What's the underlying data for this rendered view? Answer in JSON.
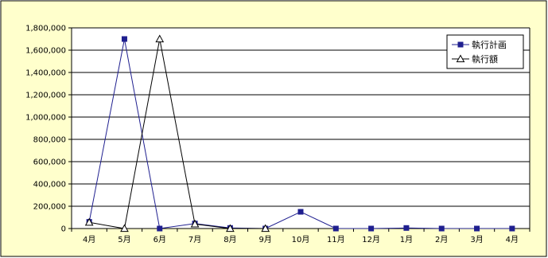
{
  "chart_data": {
    "type": "line",
    "categories": [
      "4月",
      "5月",
      "6月",
      "7月",
      "8月",
      "9月",
      "10月",
      "11月",
      "12月",
      "1月",
      "2月",
      "3月",
      "4月"
    ],
    "ylim": [
      0,
      1800000
    ],
    "yticks": [
      "0",
      "200,000",
      "400,000",
      "600,000",
      "800,000",
      "1,000,000",
      "1,200,000",
      "1,400,000",
      "1,600,000",
      "1,800,000"
    ],
    "ytick_values": [
      0,
      200000,
      400000,
      600000,
      800000,
      1000000,
      1200000,
      1400000,
      1600000,
      1800000
    ],
    "grid": true,
    "legend_position": "top-right",
    "series": [
      {
        "name": "執行計画",
        "marker": "square",
        "color": "#1f1f8f",
        "values": [
          60000,
          1700000,
          0,
          45000,
          5000,
          0,
          150000,
          0,
          0,
          5000,
          0,
          0,
          0
        ]
      },
      {
        "name": "執行額",
        "marker": "triangle",
        "color": "#000000",
        "values": [
          55000,
          0,
          1700000,
          40000,
          0,
          0,
          null,
          null,
          null,
          null,
          null,
          null,
          null
        ]
      }
    ],
    "colors": {
      "frame_background": "#ffffcc",
      "plot_background": "#ffffff",
      "gridline": "#000000"
    }
  }
}
